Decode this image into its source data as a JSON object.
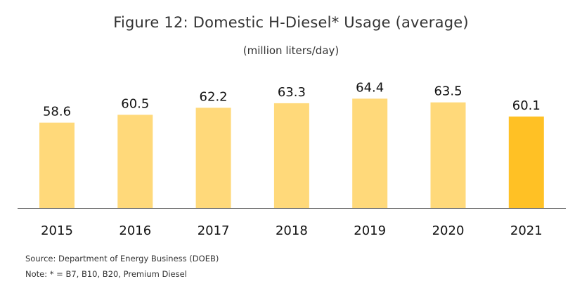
{
  "chart_data": {
    "type": "bar",
    "title": "Figure 12: Domestic H-Diesel* Usage (average)",
    "subtitle": "(million liters/day)",
    "categories": [
      "2015",
      "2016",
      "2017",
      "2018",
      "2019",
      "2020",
      "2021"
    ],
    "values": [
      58.6,
      60.5,
      62.2,
      63.3,
      64.4,
      63.5,
      60.1
    ],
    "value_labels": [
      "58.6",
      "60.5",
      "62.2",
      "63.3",
      "64.4",
      "63.5",
      "60.1"
    ],
    "highlight_index": 6,
    "ylim": [
      38,
      66
    ],
    "grid": false,
    "colors": {
      "bar": "#FFD97A",
      "highlight": "#FFC125",
      "axis": "#555555"
    }
  },
  "footer": {
    "source": "Source: Department of Energy Business (DOEB)",
    "note": "Note: * = B7, B10, B20, Premium Diesel"
  }
}
